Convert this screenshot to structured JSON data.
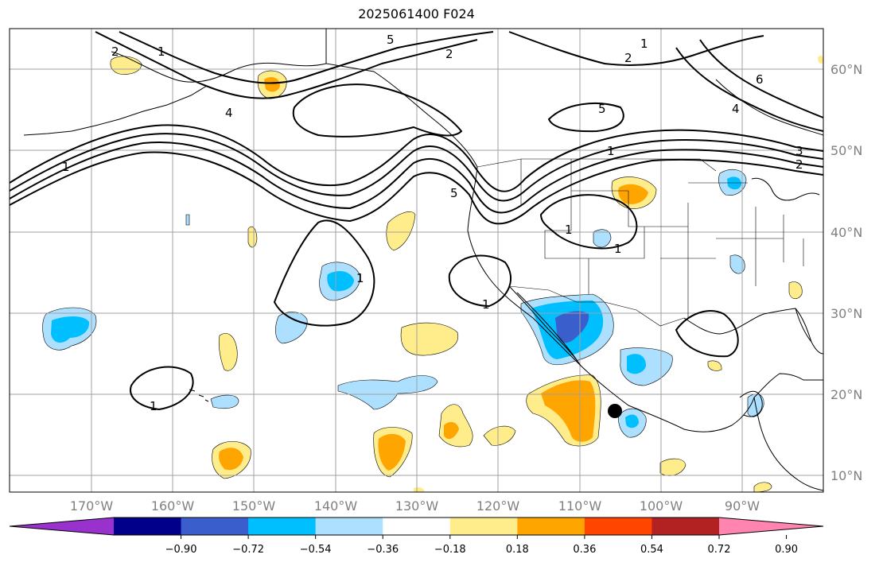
{
  "title": "2025061400 F024",
  "lat_labels": [
    "60°N",
    "50°N",
    "40°N",
    "30°N",
    "20°N",
    "10°N"
  ],
  "lon_labels": [
    "170°W",
    "160°W",
    "150°W",
    "140°W",
    "130°W",
    "120°W",
    "110°W",
    "100°W",
    "90°W"
  ],
  "colorbar": {
    "ticks": [
      "−0.90",
      "−0.72",
      "−0.54",
      "−0.36",
      "−0.18",
      "0.18",
      "0.36",
      "0.54",
      "0.72",
      "0.90"
    ],
    "colors": [
      "#9932cc",
      "#00008b",
      "#3a5fcd",
      "#00bfff",
      "#addfff",
      "#ffffff",
      "#ffec8b",
      "#ffa500",
      "#ff4500",
      "#b22222",
      "#ff85b0"
    ]
  },
  "contour_labels": [
    "5",
    "2",
    "2",
    "1",
    "2",
    "1",
    "4",
    "4",
    "5",
    "1",
    "3",
    "2",
    "6",
    "1",
    "5",
    "1",
    "1",
    "1",
    "1",
    "1"
  ],
  "marker": "black-dot"
}
